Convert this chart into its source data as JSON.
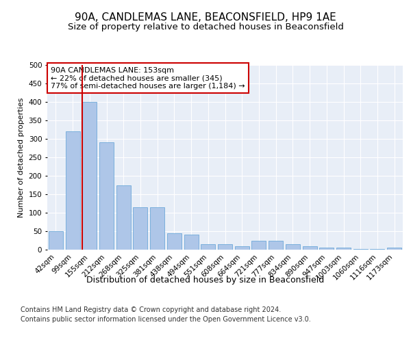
{
  "title1": "90A, CANDLEMAS LANE, BEACONSFIELD, HP9 1AE",
  "title2": "Size of property relative to detached houses in Beaconsfield",
  "xlabel": "Distribution of detached houses by size in Beaconsfield",
  "ylabel": "Number of detached properties",
  "categories": [
    "42sqm",
    "99sqm",
    "155sqm",
    "212sqm",
    "268sqm",
    "325sqm",
    "381sqm",
    "438sqm",
    "494sqm",
    "551sqm",
    "608sqm",
    "664sqm",
    "721sqm",
    "777sqm",
    "834sqm",
    "890sqm",
    "947sqm",
    "1003sqm",
    "1060sqm",
    "1116sqm",
    "1173sqm"
  ],
  "values": [
    50,
    320,
    400,
    290,
    175,
    115,
    115,
    45,
    40,
    15,
    15,
    10,
    25,
    25,
    15,
    10,
    5,
    5,
    2,
    1,
    5
  ],
  "bar_color": "#aec6e8",
  "bar_edge_color": "#5a9fd4",
  "vline_index": 2,
  "vline_color": "#cc0000",
  "annotation_text": "90A CANDLEMAS LANE: 153sqm\n← 22% of detached houses are smaller (345)\n77% of semi-detached houses are larger (1,184) →",
  "annotation_box_color": "#ffffff",
  "annotation_box_edge": "#cc0000",
  "ylim": [
    0,
    500
  ],
  "yticks": [
    0,
    50,
    100,
    150,
    200,
    250,
    300,
    350,
    400,
    450,
    500
  ],
  "bg_color": "#e8eef7",
  "fig_bg": "#ffffff",
  "footer1": "Contains HM Land Registry data © Crown copyright and database right 2024.",
  "footer2": "Contains public sector information licensed under the Open Government Licence v3.0.",
  "title1_fontsize": 11,
  "title2_fontsize": 9.5,
  "xlabel_fontsize": 9,
  "ylabel_fontsize": 8,
  "tick_fontsize": 7.5,
  "annotation_fontsize": 8,
  "footer_fontsize": 7
}
